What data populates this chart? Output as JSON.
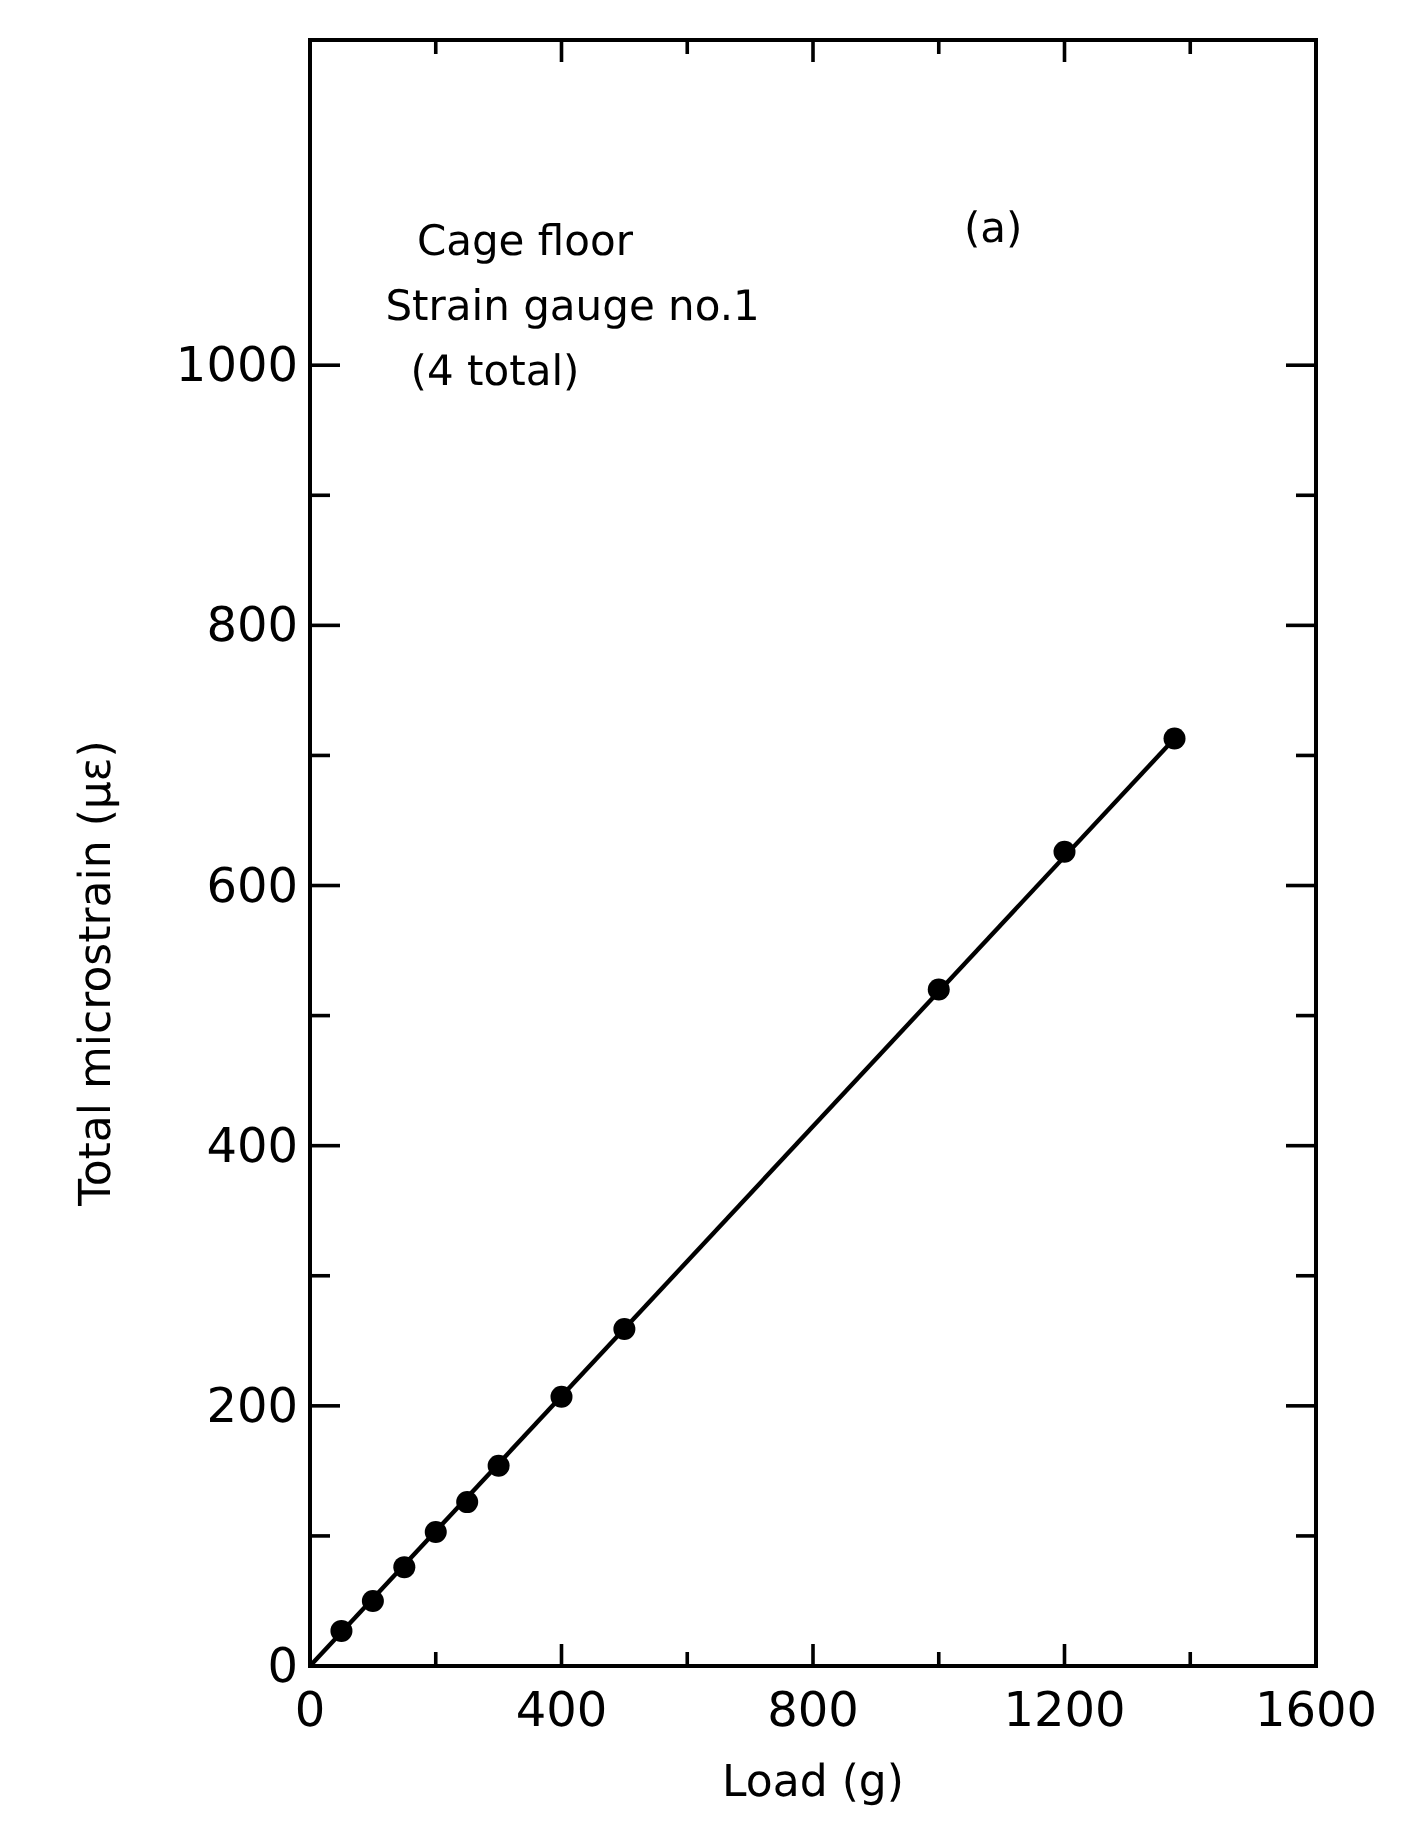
{
  "chart_data": {
    "type": "scatter",
    "xlabel": "Load (g)",
    "ylabel": "Total microstrain (με)",
    "annotations": [
      "Cage floor",
      "Strain gauge no.1",
      "(4 total)",
      "(a)"
    ],
    "xlim": [
      0,
      1600
    ],
    "xticks": [
      0,
      {
        "value": 200,
        "label": null
      },
      400,
      {
        "value": 600,
        "label": null
      },
      800,
      {
        "value": 1000,
        "label": null
      },
      1200,
      {
        "value": 1400,
        "label": null
      },
      1600
    ],
    "ylim": [
      0,
      1250
    ],
    "yticks": [
      0,
      {
        "value": 100,
        "label": null
      },
      200,
      {
        "value": 300,
        "label": null
      },
      400,
      {
        "value": 500,
        "label": null
      },
      600,
      {
        "value": 700,
        "label": null
      },
      800,
      {
        "value": 900,
        "label": null
      },
      1000
    ],
    "grid": false,
    "series": [
      {
        "type": "line",
        "color": "#000000",
        "marker": "none",
        "x": [
          0,
          1375
        ],
        "values": [
          0,
          713
        ]
      },
      {
        "color": "#000000",
        "marker": "circle",
        "x": [
          50,
          100,
          150,
          200,
          250,
          300,
          400,
          500,
          1000,
          1200,
          1375
        ],
        "values": [
          27,
          50,
          76,
          103,
          126,
          154,
          207,
          259,
          520,
          626,
          713
        ]
      }
    ]
  }
}
